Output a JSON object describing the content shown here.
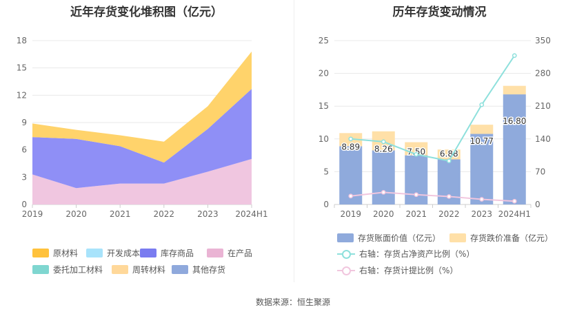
{
  "source_text": "数据来源：恒生聚源",
  "chart_data": [
    {
      "type": "area",
      "stacked": true,
      "title": "近年存货变化堆积图（亿元）",
      "categories": [
        "2019",
        "2020",
        "2021",
        "2022",
        "2023",
        "2024H1"
      ],
      "y_ticks": [
        "0",
        "3",
        "6",
        "9",
        "12",
        "15",
        "18"
      ],
      "ylim": [
        0,
        18
      ],
      "series": [
        {
          "name": "在产品",
          "color": "#f0c6e0",
          "values": [
            3.3,
            1.8,
            2.3,
            2.3,
            3.6,
            5.0
          ]
        },
        {
          "name": "库存商品",
          "color": "#8f8ff6",
          "values": [
            4.1,
            5.4,
            4.1,
            2.3,
            4.7,
            7.7
          ]
        },
        {
          "name": "原材料",
          "color": "#ffd36b",
          "values": [
            1.5,
            1.0,
            1.2,
            2.3,
            2.5,
            4.1
          ]
        }
      ],
      "legend": [
        {
          "name": "原材料",
          "color": "#ffc23c"
        },
        {
          "name": "开发成本",
          "color": "#a8e3fb"
        },
        {
          "name": "库存商品",
          "color": "#7a7cf0"
        },
        {
          "name": "在产品",
          "color": "#eab4d4"
        },
        {
          "name": "委托加工材料",
          "color": "#7fd6d0"
        },
        {
          "name": "周转材料",
          "color": "#ffd89a"
        },
        {
          "name": "其他存货",
          "color": "#8fa9dc"
        }
      ]
    },
    {
      "type": "bar+line",
      "title": "历年存货变动情况",
      "categories": [
        "2019",
        "2020",
        "2021",
        "2022",
        "2023",
        "2024H1"
      ],
      "left_ticks": [
        "0",
        "5",
        "10",
        "15",
        "20",
        "25"
      ],
      "left_lim": [
        0,
        25
      ],
      "right_ticks": [
        "0",
        "70",
        "140",
        "210",
        "280",
        "350"
      ],
      "right_lim": [
        0,
        350
      ],
      "bars": [
        {
          "name": "存货账面价值（亿元）",
          "color": "#8faadc",
          "values": [
            8.89,
            8.26,
            7.5,
            6.88,
            10.77,
            16.8
          ],
          "labels": [
            "8.89",
            "8.26",
            "7.50",
            "6.88",
            "10.77",
            "16.80"
          ]
        },
        {
          "name": "存货跌价准备（亿元）",
          "color": "#ffe0a8",
          "values": [
            2.0,
            2.9,
            2.0,
            1.5,
            1.4,
            1.3
          ]
        }
      ],
      "lines": [
        {
          "name": "右轴：存货占净资产比例（%）",
          "color": "#8ee0dc",
          "values": [
            140,
            134,
            107,
            93,
            213,
            318
          ]
        },
        {
          "name": "右轴：存货计提比例（%）",
          "color": "#f1c6de",
          "values": [
            18,
            26,
            21,
            17,
            11,
            7
          ]
        }
      ]
    }
  ]
}
